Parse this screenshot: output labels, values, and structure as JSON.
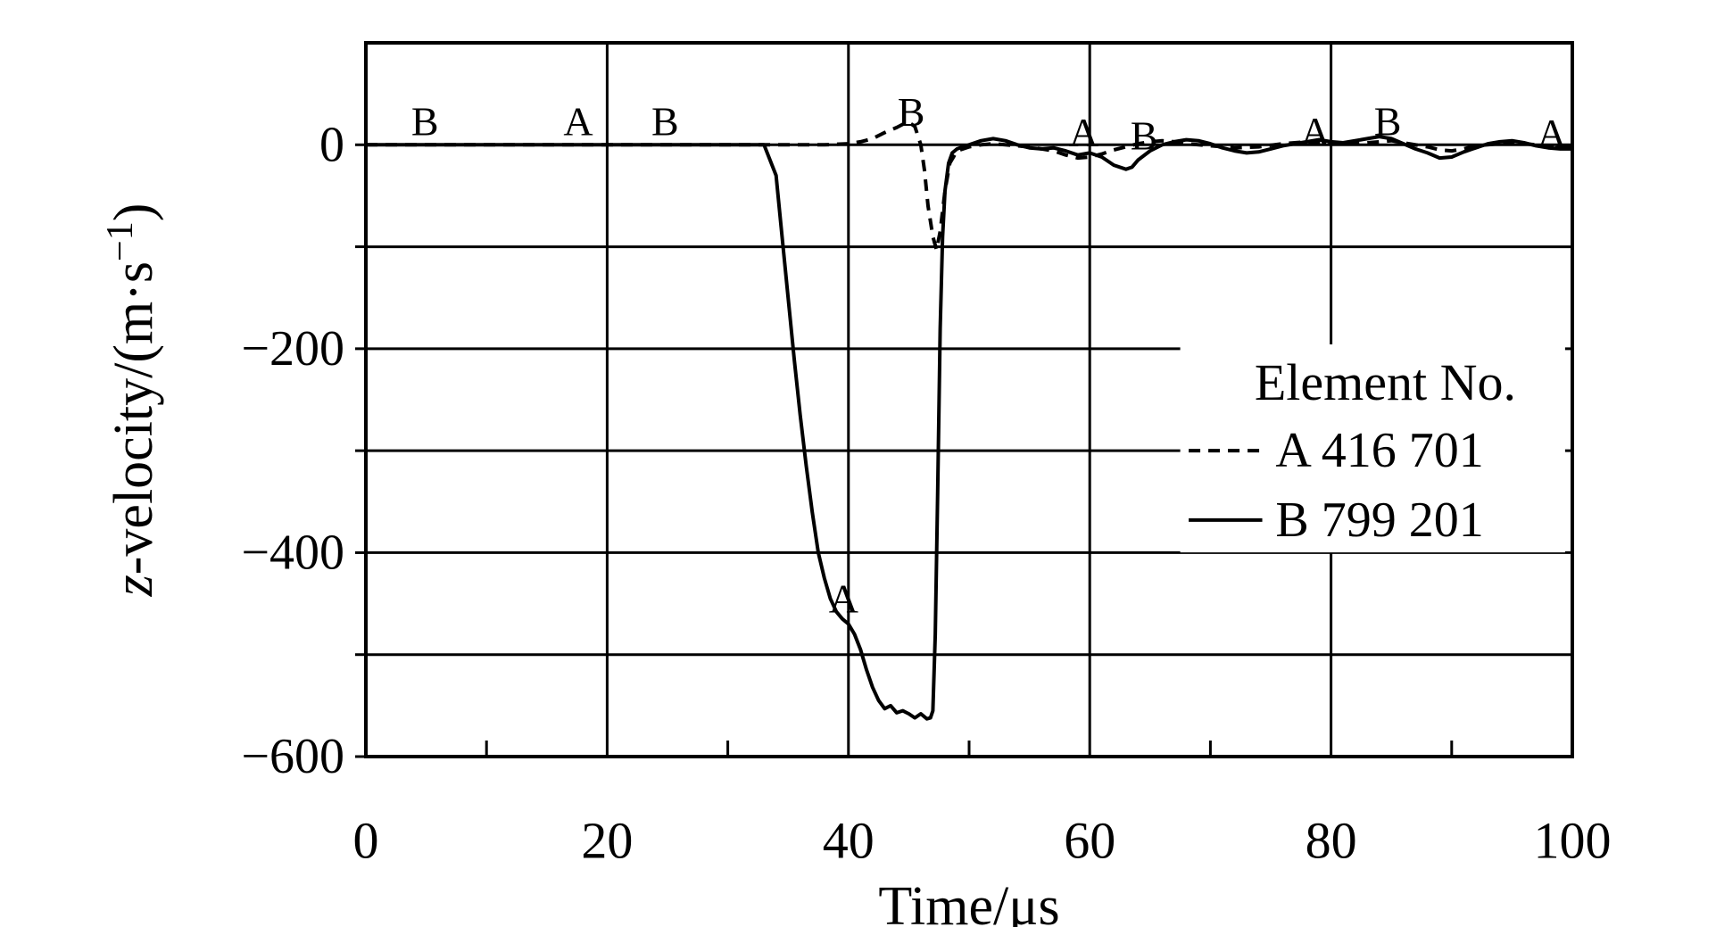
{
  "page": {
    "background": "#ffffff",
    "foreground": "#000000"
  },
  "chart_data": {
    "type": "line",
    "title": "",
    "xlabel": "Time/μs",
    "ylabel": "z-velocity/(m·s⁻¹)",
    "ylabel_parts": [
      {
        "text": "z",
        "italic": true
      },
      {
        "text": "-velocity/(m·s"
      },
      {
        "text": "−1",
        "sup": true
      },
      {
        "text": ")"
      }
    ],
    "xlim": [
      0,
      100
    ],
    "ylim": [
      -600,
      100
    ],
    "x_tick_values": [
      0,
      20,
      40,
      60,
      80,
      100
    ],
    "x_tick_labels": [
      "0",
      "20",
      "40",
      "60",
      "80",
      "100"
    ],
    "x_minor_ticks": [
      10,
      30,
      50,
      70,
      90
    ],
    "x_gridlines": [
      20,
      40,
      60,
      80
    ],
    "y_tick_values": [
      0,
      -200,
      -400,
      -600
    ],
    "y_tick_labels": [
      "0",
      "−200",
      "−400",
      "−600"
    ],
    "y_gridlines": [
      0,
      -100,
      -200,
      -300,
      -400,
      -500,
      -600
    ],
    "grid": true,
    "line_color": "#000000",
    "legend": {
      "title": "Element No.",
      "position": "right-middle",
      "entries": [
        {
          "key": "A",
          "label": "A 416 701",
          "style": "dashed"
        },
        {
          "key": "B",
          "label": "B 799 201",
          "style": "solid"
        }
      ]
    },
    "series": [
      {
        "name": "A 416 701",
        "style": "dashed",
        "points": [
          [
            0,
            0
          ],
          [
            10,
            0
          ],
          [
            20,
            0
          ],
          [
            30,
            0
          ],
          [
            38,
            0
          ],
          [
            40,
            1
          ],
          [
            41,
            3
          ],
          [
            42,
            6
          ],
          [
            43,
            12
          ],
          [
            44,
            17
          ],
          [
            44.5,
            20
          ],
          [
            45,
            22
          ],
          [
            45.5,
            18
          ],
          [
            46,
            0
          ],
          [
            46.3,
            -25
          ],
          [
            46.6,
            -60
          ],
          [
            47,
            -90
          ],
          [
            47.3,
            -103
          ],
          [
            47.6,
            -85
          ],
          [
            48,
            -45
          ],
          [
            48.4,
            -18
          ],
          [
            49,
            -6
          ],
          [
            50,
            -2
          ],
          [
            51,
            0
          ],
          [
            52,
            1
          ],
          [
            53,
            0
          ],
          [
            55,
            -2
          ],
          [
            57,
            -6
          ],
          [
            58,
            -10
          ],
          [
            59,
            -13
          ],
          [
            60,
            -12
          ],
          [
            61,
            -9
          ],
          [
            62,
            -5
          ],
          [
            63,
            -2
          ],
          [
            64,
            1
          ],
          [
            65,
            3
          ],
          [
            66,
            4
          ],
          [
            67,
            3
          ],
          [
            68,
            1
          ],
          [
            70,
            -1
          ],
          [
            72,
            -3
          ],
          [
            74,
            -2
          ],
          [
            76,
            1
          ],
          [
            78,
            3
          ],
          [
            80,
            2
          ],
          [
            82,
            1
          ],
          [
            84,
            3
          ],
          [
            85,
            4
          ],
          [
            86,
            2
          ],
          [
            88,
            -2
          ],
          [
            89,
            -5
          ],
          [
            90,
            -6
          ],
          [
            91,
            -4
          ],
          [
            92,
            -1
          ],
          [
            94,
            1
          ],
          [
            96,
            1
          ],
          [
            98,
            -1
          ],
          [
            100,
            -2
          ]
        ]
      },
      {
        "name": "B 799 201",
        "style": "solid",
        "points": [
          [
            0,
            0
          ],
          [
            10,
            0
          ],
          [
            20,
            0
          ],
          [
            30,
            0
          ],
          [
            33,
            0
          ],
          [
            34,
            -30
          ],
          [
            34.5,
            -90
          ],
          [
            35,
            -150
          ],
          [
            35.5,
            -210
          ],
          [
            36,
            -265
          ],
          [
            36.5,
            -315
          ],
          [
            37,
            -360
          ],
          [
            37.5,
            -400
          ],
          [
            38,
            -425
          ],
          [
            38.5,
            -445
          ],
          [
            39,
            -458
          ],
          [
            39.5,
            -465
          ],
          [
            40,
            -470
          ],
          [
            40.5,
            -480
          ],
          [
            41,
            -495
          ],
          [
            41.5,
            -515
          ],
          [
            42,
            -532
          ],
          [
            42.5,
            -545
          ],
          [
            43,
            -553
          ],
          [
            43.5,
            -550
          ],
          [
            44,
            -557
          ],
          [
            44.5,
            -555
          ],
          [
            45,
            -558
          ],
          [
            45.5,
            -562
          ],
          [
            46,
            -558
          ],
          [
            46.5,
            -563
          ],
          [
            46.8,
            -562
          ],
          [
            47,
            -555
          ],
          [
            47.2,
            -480
          ],
          [
            47.4,
            -340
          ],
          [
            47.6,
            -180
          ],
          [
            47.8,
            -90
          ],
          [
            48,
            -45
          ],
          [
            48.3,
            -18
          ],
          [
            48.6,
            -8
          ],
          [
            49,
            -4
          ],
          [
            50,
            0
          ],
          [
            51,
            4
          ],
          [
            52,
            6
          ],
          [
            53,
            4
          ],
          [
            54,
            0
          ],
          [
            55,
            -3
          ],
          [
            56,
            -4
          ],
          [
            57,
            -3
          ],
          [
            58,
            -6
          ],
          [
            59,
            -10
          ],
          [
            60,
            -8
          ],
          [
            61,
            -12
          ],
          [
            62,
            -20
          ],
          [
            63,
            -24
          ],
          [
            63.5,
            -22
          ],
          [
            64,
            -15
          ],
          [
            65,
            -6
          ],
          [
            66,
            0
          ],
          [
            67,
            3
          ],
          [
            68,
            5
          ],
          [
            69,
            4
          ],
          [
            70,
            1
          ],
          [
            71,
            -3
          ],
          [
            72,
            -6
          ],
          [
            73,
            -8
          ],
          [
            74,
            -7
          ],
          [
            75,
            -4
          ],
          [
            76,
            -1
          ],
          [
            77,
            1
          ],
          [
            78,
            3
          ],
          [
            79,
            5
          ],
          [
            80,
            3
          ],
          [
            81,
            2
          ],
          [
            82,
            4
          ],
          [
            83,
            6
          ],
          [
            84,
            8
          ],
          [
            85,
            6
          ],
          [
            86,
            1
          ],
          [
            87,
            -4
          ],
          [
            88,
            -8
          ],
          [
            89,
            -13
          ],
          [
            90,
            -12
          ],
          [
            91,
            -7
          ],
          [
            92,
            -3
          ],
          [
            93,
            1
          ],
          [
            94,
            3
          ],
          [
            95,
            4
          ],
          [
            96,
            2
          ],
          [
            97,
            -1
          ],
          [
            98,
            -3
          ],
          [
            99,
            -4
          ],
          [
            100,
            -4
          ]
        ]
      }
    ],
    "annotations": [
      {
        "text": "B",
        "x": 4.9,
        "y": 23
      },
      {
        "text": "A",
        "x": 17.6,
        "y": 23
      },
      {
        "text": "B",
        "x": 24.8,
        "y": 23
      },
      {
        "text": "B",
        "x": 45.2,
        "y": 32
      },
      {
        "text": "A",
        "x": 59.5,
        "y": 12
      },
      {
        "text": "B",
        "x": 64.5,
        "y": 9
      },
      {
        "text": "A",
        "x": 78.7,
        "y": 13
      },
      {
        "text": "B",
        "x": 84.7,
        "y": 23
      },
      {
        "text": "A",
        "x": 98.3,
        "y": 11
      },
      {
        "text": "A",
        "x": 39.6,
        "y": -445
      }
    ]
  }
}
